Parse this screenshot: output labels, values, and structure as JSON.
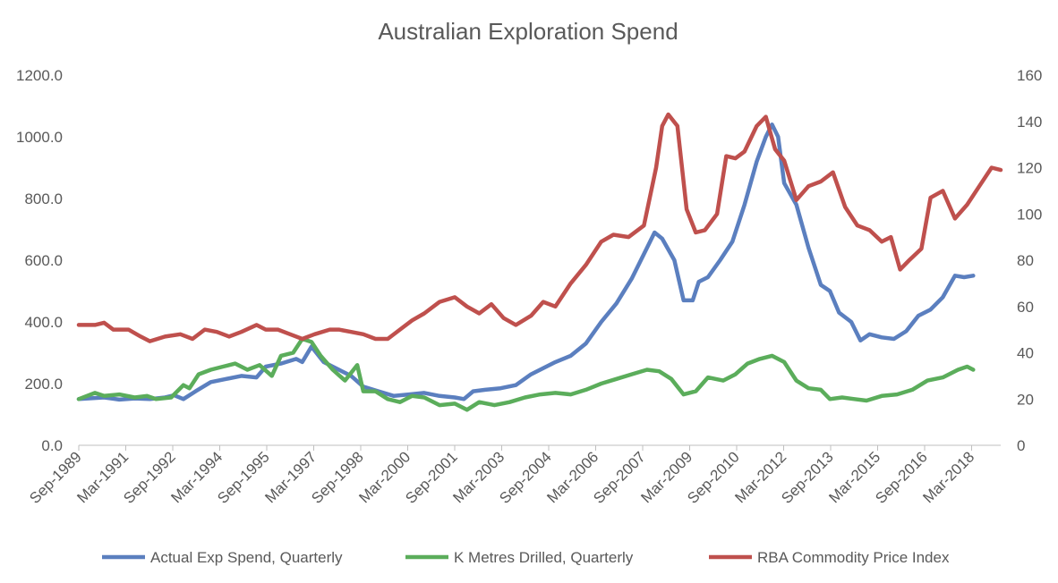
{
  "chart_data": {
    "type": "line",
    "title": "Australian Exploration Spend",
    "x_tick_labels": [
      "Sep-1989",
      "Mar-1991",
      "Sep-1992",
      "Mar-1994",
      "Sep-1995",
      "Mar-1997",
      "Sep-1998",
      "Mar-2000",
      "Sep-2001",
      "Mar-2003",
      "Sep-2004",
      "Mar-2006",
      "Sep-2007",
      "Mar-2009",
      "Sep-2010",
      "Mar-2012",
      "Sep-2013",
      "Mar-2015",
      "Sep-2016",
      "Mar-2018"
    ],
    "x_range": [
      "Sep-1989",
      "Dec-2018"
    ],
    "y_left": {
      "ticks": [
        "0.0",
        "200.0",
        "400.0",
        "600.0",
        "800.0",
        "1000.0",
        "1200.0"
      ],
      "min": 0,
      "max": 1200
    },
    "y_right": {
      "ticks": [
        "0",
        "20",
        "40",
        "60",
        "80",
        "100",
        "120",
        "140",
        "160"
      ],
      "min": 0,
      "max": 160
    },
    "legend_position": "bottom",
    "gridlines": false,
    "series": [
      {
        "name": "Actual Exp Spend, Quarterly",
        "axis": "left",
        "color": "#5b7fbf",
        "points": [
          [
            1989.67,
            150
          ],
          [
            1990.5,
            155
          ],
          [
            1991.0,
            148
          ],
          [
            1991.5,
            152
          ],
          [
            1992.0,
            150
          ],
          [
            1992.5,
            155
          ],
          [
            1992.8,
            162
          ],
          [
            1993.1,
            150
          ],
          [
            1993.5,
            175
          ],
          [
            1994.0,
            205
          ],
          [
            1994.5,
            215
          ],
          [
            1995.0,
            225
          ],
          [
            1995.5,
            220
          ],
          [
            1995.8,
            255
          ],
          [
            1996.3,
            265
          ],
          [
            1996.8,
            280
          ],
          [
            1997.0,
            270
          ],
          [
            1997.3,
            320
          ],
          [
            1997.7,
            270
          ],
          [
            1998.2,
            245
          ],
          [
            1998.6,
            225
          ],
          [
            1999.0,
            190
          ],
          [
            1999.5,
            175
          ],
          [
            2000.0,
            160
          ],
          [
            2000.5,
            165
          ],
          [
            2001.0,
            170
          ],
          [
            2001.5,
            160
          ],
          [
            2002.0,
            155
          ],
          [
            2002.3,
            150
          ],
          [
            2002.6,
            175
          ],
          [
            2003.0,
            180
          ],
          [
            2003.5,
            185
          ],
          [
            2004.0,
            195
          ],
          [
            2004.5,
            230
          ],
          [
            2004.9,
            250
          ],
          [
            2005.3,
            270
          ],
          [
            2005.8,
            290
          ],
          [
            2006.3,
            330
          ],
          [
            2006.8,
            400
          ],
          [
            2007.3,
            460
          ],
          [
            2007.8,
            540
          ],
          [
            2008.2,
            620
          ],
          [
            2008.55,
            690
          ],
          [
            2008.8,
            670
          ],
          [
            2009.2,
            600
          ],
          [
            2009.5,
            470
          ],
          [
            2009.8,
            470
          ],
          [
            2010.0,
            530
          ],
          [
            2010.3,
            545
          ],
          [
            2010.7,
            600
          ],
          [
            2011.1,
            660
          ],
          [
            2011.5,
            780
          ],
          [
            2011.9,
            920
          ],
          [
            2012.2,
            1000
          ],
          [
            2012.4,
            1040
          ],
          [
            2012.6,
            1000
          ],
          [
            2012.8,
            850
          ],
          [
            2013.2,
            780
          ],
          [
            2013.6,
            640
          ],
          [
            2014.0,
            520
          ],
          [
            2014.3,
            500
          ],
          [
            2014.6,
            430
          ],
          [
            2015.0,
            400
          ],
          [
            2015.3,
            340
          ],
          [
            2015.6,
            360
          ],
          [
            2016.0,
            350
          ],
          [
            2016.4,
            345
          ],
          [
            2016.8,
            370
          ],
          [
            2017.2,
            420
          ],
          [
            2017.6,
            440
          ],
          [
            2018.0,
            480
          ],
          [
            2018.4,
            550
          ],
          [
            2018.7,
            545
          ],
          [
            2019.0,
            550
          ]
        ]
      },
      {
        "name": "K Metres Drilled, Quarterly",
        "axis": "left",
        "color": "#5bad5b",
        "points": [
          [
            1989.67,
            150
          ],
          [
            1990.2,
            170
          ],
          [
            1990.5,
            160
          ],
          [
            1991.0,
            165
          ],
          [
            1991.5,
            155
          ],
          [
            1991.9,
            160
          ],
          [
            1992.2,
            150
          ],
          [
            1992.7,
            155
          ],
          [
            1993.1,
            195
          ],
          [
            1993.3,
            185
          ],
          [
            1993.6,
            230
          ],
          [
            1994.0,
            245
          ],
          [
            1994.4,
            255
          ],
          [
            1994.8,
            265
          ],
          [
            1995.2,
            245
          ],
          [
            1995.6,
            260
          ],
          [
            1996.0,
            225
          ],
          [
            1996.3,
            290
          ],
          [
            1996.7,
            300
          ],
          [
            1997.0,
            345
          ],
          [
            1997.3,
            335
          ],
          [
            1997.6,
            290
          ],
          [
            1998.0,
            245
          ],
          [
            1998.4,
            210
          ],
          [
            1998.8,
            260
          ],
          [
            1999.0,
            175
          ],
          [
            1999.4,
            175
          ],
          [
            1999.8,
            150
          ],
          [
            2000.2,
            140
          ],
          [
            2000.6,
            160
          ],
          [
            2001.0,
            155
          ],
          [
            2001.5,
            130
          ],
          [
            2002.0,
            135
          ],
          [
            2002.4,
            115
          ],
          [
            2002.8,
            140
          ],
          [
            2003.3,
            130
          ],
          [
            2003.8,
            140
          ],
          [
            2004.3,
            155
          ],
          [
            2004.8,
            165
          ],
          [
            2005.3,
            170
          ],
          [
            2005.8,
            165
          ],
          [
            2006.3,
            180
          ],
          [
            2006.8,
            200
          ],
          [
            2007.3,
            215
          ],
          [
            2007.8,
            230
          ],
          [
            2008.3,
            245
          ],
          [
            2008.7,
            240
          ],
          [
            2009.1,
            215
          ],
          [
            2009.5,
            165
          ],
          [
            2009.9,
            175
          ],
          [
            2010.3,
            220
          ],
          [
            2010.8,
            210
          ],
          [
            2011.2,
            230
          ],
          [
            2011.6,
            265
          ],
          [
            2012.0,
            280
          ],
          [
            2012.4,
            290
          ],
          [
            2012.8,
            270
          ],
          [
            2013.2,
            210
          ],
          [
            2013.6,
            185
          ],
          [
            2014.0,
            180
          ],
          [
            2014.3,
            150
          ],
          [
            2014.7,
            155
          ],
          [
            2015.1,
            150
          ],
          [
            2015.5,
            145
          ],
          [
            2016.0,
            160
          ],
          [
            2016.5,
            165
          ],
          [
            2017.0,
            180
          ],
          [
            2017.5,
            210
          ],
          [
            2018.0,
            220
          ],
          [
            2018.5,
            245
          ],
          [
            2018.8,
            255
          ],
          [
            2019.0,
            245
          ]
        ]
      },
      {
        "name": "RBA Commodity Price Index",
        "axis": "right",
        "color": "#bf504d",
        "points": [
          [
            1989.67,
            52
          ],
          [
            1990.2,
            52
          ],
          [
            1990.5,
            53
          ],
          [
            1990.8,
            50
          ],
          [
            1991.3,
            50
          ],
          [
            1991.7,
            47
          ],
          [
            1992.0,
            45
          ],
          [
            1992.5,
            47
          ],
          [
            1993.0,
            48
          ],
          [
            1993.4,
            46
          ],
          [
            1993.8,
            50
          ],
          [
            1994.2,
            49
          ],
          [
            1994.6,
            47
          ],
          [
            1995.0,
            49
          ],
          [
            1995.5,
            52
          ],
          [
            1995.8,
            50
          ],
          [
            1996.2,
            50
          ],
          [
            1996.6,
            48
          ],
          [
            1997.0,
            46
          ],
          [
            1997.4,
            48
          ],
          [
            1997.9,
            50
          ],
          [
            1998.2,
            50
          ],
          [
            1998.6,
            49
          ],
          [
            1999.0,
            48
          ],
          [
            1999.4,
            46
          ],
          [
            1999.8,
            46
          ],
          [
            2000.2,
            50
          ],
          [
            2000.6,
            54
          ],
          [
            2001.0,
            57
          ],
          [
            2001.5,
            62
          ],
          [
            2002.0,
            64
          ],
          [
            2002.4,
            60
          ],
          [
            2002.8,
            57
          ],
          [
            2003.2,
            61
          ],
          [
            2003.6,
            55
          ],
          [
            2004.0,
            52
          ],
          [
            2004.5,
            56
          ],
          [
            2004.9,
            62
          ],
          [
            2005.3,
            60
          ],
          [
            2005.8,
            70
          ],
          [
            2006.3,
            78
          ],
          [
            2006.8,
            88
          ],
          [
            2007.2,
            91
          ],
          [
            2007.7,
            90
          ],
          [
            2008.2,
            95
          ],
          [
            2008.6,
            120
          ],
          [
            2008.8,
            138
          ],
          [
            2009.0,
            143
          ],
          [
            2009.3,
            138
          ],
          [
            2009.6,
            102
          ],
          [
            2009.9,
            92
          ],
          [
            2010.2,
            93
          ],
          [
            2010.6,
            100
          ],
          [
            2010.9,
            125
          ],
          [
            2011.2,
            124
          ],
          [
            2011.5,
            127
          ],
          [
            2011.9,
            138
          ],
          [
            2012.2,
            142
          ],
          [
            2012.5,
            128
          ],
          [
            2012.8,
            123
          ],
          [
            2013.2,
            106
          ],
          [
            2013.6,
            112
          ],
          [
            2014.0,
            114
          ],
          [
            2014.4,
            118
          ],
          [
            2014.8,
            103
          ],
          [
            2015.2,
            95
          ],
          [
            2015.6,
            93
          ],
          [
            2016.0,
            88
          ],
          [
            2016.3,
            90
          ],
          [
            2016.6,
            76
          ],
          [
            2016.9,
            80
          ],
          [
            2017.3,
            85
          ],
          [
            2017.6,
            107
          ],
          [
            2018.0,
            110
          ],
          [
            2018.4,
            98
          ],
          [
            2018.8,
            104
          ],
          [
            2019.2,
            112
          ],
          [
            2019.6,
            120
          ],
          [
            2019.9,
            119
          ]
        ]
      }
    ]
  }
}
